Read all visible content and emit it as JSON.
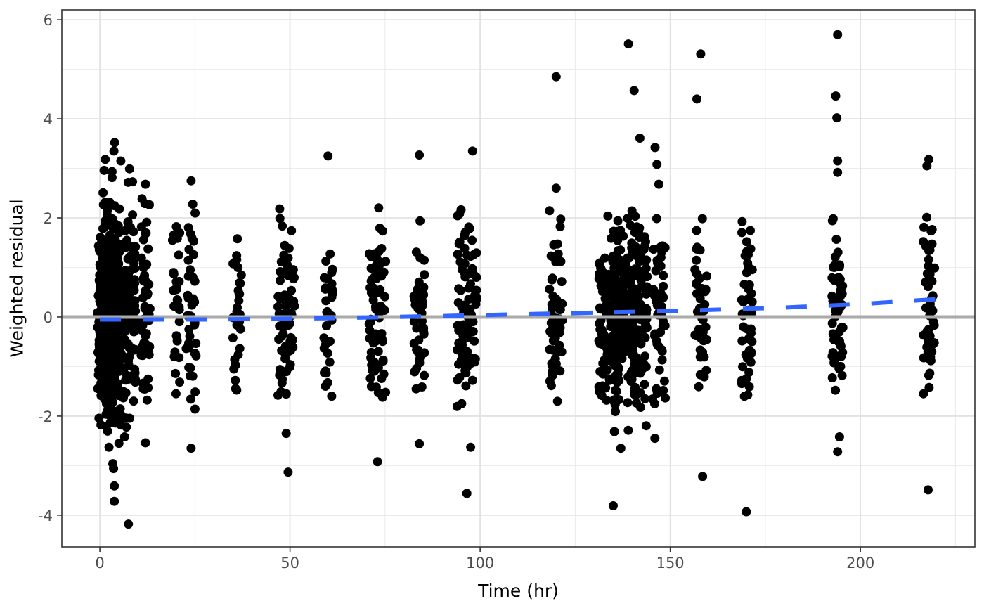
{
  "chart_data": {
    "type": "scatter",
    "title": "",
    "xlabel": "Time (hr)",
    "ylabel": "Weighted residual",
    "grid": true,
    "legend": false,
    "background": "#ffffff",
    "panel_border_color": "#333333",
    "grid_major_color": "#e2e2e2",
    "grid_minor_color": "#ececec",
    "tick_label_color": "#4d4d4d",
    "point_color": "#000000",
    "point_radius": 6.5,
    "x_axis": {
      "ticks": [
        0,
        50,
        100,
        150,
        200
      ],
      "minor_ticks": [
        25,
        75,
        125,
        175,
        225
      ],
      "range": [
        -10,
        230.1
      ],
      "label_format": [
        "0",
        "50",
        "100",
        "150",
        "200"
      ]
    },
    "y_axis": {
      "ticks": [
        -4,
        -2,
        0,
        2,
        4,
        6
      ],
      "minor_ticks": [
        -3,
        -1,
        1,
        3,
        5
      ],
      "range": [
        -4.64,
        6.2
      ],
      "label_format": [
        "-4",
        "-2",
        "0",
        "2",
        "4",
        "6"
      ]
    },
    "refline": {
      "y": 0,
      "color": "#aaaaaa",
      "width": 5
    },
    "trend": {
      "color": "#3366FF",
      "width": 6,
      "dash": [
        30,
        31
      ],
      "points": [
        [
          0,
          -0.05
        ],
        [
          30,
          -0.05
        ],
        [
          60,
          -0.025
        ],
        [
          90,
          0.02
        ],
        [
          120,
          0.07
        ],
        [
          150,
          0.12
        ],
        [
          180,
          0.19
        ],
        [
          200,
          0.26
        ],
        [
          220,
          0.36
        ]
      ]
    },
    "columns": [
      {
        "time": 0.5,
        "jitter": 1.2,
        "n": 95,
        "sd": 1.05,
        "min": -2.1,
        "max": 2.65
      },
      {
        "time": 1,
        "jitter": 1.2,
        "n": 95,
        "sd": 1.05,
        "min": -2.3,
        "max": 2.8
      },
      {
        "time": 2,
        "jitter": 1.3,
        "n": 90,
        "sd": 1.05,
        "min": -2.2,
        "max": 2.9
      },
      {
        "time": 3,
        "jitter": 1.3,
        "n": 85,
        "sd": 1.08,
        "min": -2.5,
        "max": 3.2
      },
      {
        "time": 4,
        "jitter": 1.3,
        "n": 85,
        "sd": 1.08,
        "min": -2.3,
        "max": 3.3
      },
      {
        "time": 6,
        "jitter": 1.5,
        "n": 80,
        "sd": 1.05,
        "min": -2.4,
        "max": 3.0
      },
      {
        "time": 8,
        "jitter": 1.5,
        "n": 75,
        "sd": 1.05,
        "min": -2.2,
        "max": 2.75
      },
      {
        "time": 12,
        "jitter": 1.2,
        "n": 55,
        "sd": 1.0,
        "min": -2.2,
        "max": 2.55
      },
      {
        "time": 20,
        "jitter": 1.0,
        "n": 28,
        "sd": 1.0,
        "min": -1.9,
        "max": 2.15
      },
      {
        "time": 24,
        "jitter": 1.4,
        "n": 38,
        "sd": 0.95,
        "min": -2.05,
        "max": 2.6
      },
      {
        "time": 36,
        "jitter": 1.2,
        "n": 32,
        "sd": 0.8,
        "min": -1.8,
        "max": 1.65
      },
      {
        "time": 48,
        "jitter": 1.2,
        "n": 40,
        "sd": 0.95,
        "min": -2.05,
        "max": 2.3
      },
      {
        "time": 50,
        "jitter": 1.2,
        "n": 36,
        "sd": 0.95,
        "min": -1.9,
        "max": 2.45
      },
      {
        "time": 60,
        "jitter": 1.2,
        "n": 34,
        "sd": 0.85,
        "min": -1.75,
        "max": 2.1
      },
      {
        "time": 73,
        "jitter": 2.2,
        "n": 70,
        "sd": 0.95,
        "min": -1.95,
        "max": 2.45
      },
      {
        "time": 84,
        "jitter": 1.4,
        "n": 48,
        "sd": 0.9,
        "min": -1.55,
        "max": 2.0
      },
      {
        "time": 96.5,
        "jitter": 2.6,
        "n": 95,
        "sd": 1.0,
        "min": -2.2,
        "max": 2.5
      },
      {
        "time": 120,
        "jitter": 1.8,
        "n": 60,
        "sd": 0.95,
        "min": -2.05,
        "max": 2.3
      },
      {
        "time": 134,
        "jitter": 2.8,
        "n": 135,
        "sd": 1.0,
        "min": -2.1,
        "max": 2.1
      },
      {
        "time": 138,
        "jitter": 2.8,
        "n": 135,
        "sd": 1.05,
        "min": -2.5,
        "max": 2.15
      },
      {
        "time": 142,
        "jitter": 2.2,
        "n": 95,
        "sd": 1.0,
        "min": -2.2,
        "max": 2.1
      },
      {
        "time": 147,
        "jitter": 1.8,
        "n": 50,
        "sd": 0.95,
        "min": -2.55,
        "max": 2.3
      },
      {
        "time": 158,
        "jitter": 1.6,
        "n": 48,
        "sd": 0.95,
        "min": -2.05,
        "max": 2.15
      },
      {
        "time": 170,
        "jitter": 1.6,
        "n": 46,
        "sd": 0.95,
        "min": -1.95,
        "max": 2.4
      },
      {
        "time": 194,
        "jitter": 1.5,
        "n": 55,
        "sd": 0.95,
        "min": -1.6,
        "max": 2.6
      },
      {
        "time": 218,
        "jitter": 1.6,
        "n": 50,
        "sd": 0.95,
        "min": -1.55,
        "max": 2.25
      }
    ],
    "outlier_points": [
      [
        3.9,
        3.52
      ],
      [
        3.7,
        3.35
      ],
      [
        5.5,
        3.15
      ],
      [
        1.4,
        3.18
      ],
      [
        1.1,
        2.96
      ],
      [
        7.8,
        2.99
      ],
      [
        8.6,
        2.73
      ],
      [
        2.4,
        -2.63
      ],
      [
        3.4,
        -2.96
      ],
      [
        3.6,
        -3.06
      ],
      [
        3.8,
        -3.41
      ],
      [
        3.8,
        -3.72
      ],
      [
        7.5,
        -4.18
      ],
      [
        5.0,
        -2.55
      ],
      [
        6.5,
        -2.42
      ],
      [
        12,
        2.68
      ],
      [
        12,
        -2.54
      ],
      [
        24,
        2.75
      ],
      [
        24,
        -2.65
      ],
      [
        49,
        -2.35
      ],
      [
        49.5,
        -3.13
      ],
      [
        60,
        3.25
      ],
      [
        73,
        -2.92
      ],
      [
        84,
        3.27
      ],
      [
        84,
        -2.56
      ],
      [
        98,
        3.35
      ],
      [
        96.5,
        -3.56
      ],
      [
        97.5,
        -2.63
      ],
      [
        120,
        4.85
      ],
      [
        120,
        2.6
      ],
      [
        139,
        5.51
      ],
      [
        140.5,
        4.57
      ],
      [
        142,
        3.61
      ],
      [
        135,
        -3.81
      ],
      [
        137,
        -2.65
      ],
      [
        146,
        3.42
      ],
      [
        146.5,
        3.08
      ],
      [
        147,
        2.68
      ],
      [
        158,
        5.31
      ],
      [
        157,
        4.4
      ],
      [
        158.5,
        -3.22
      ],
      [
        170,
        -3.93
      ],
      [
        194,
        5.7
      ],
      [
        193.5,
        4.46
      ],
      [
        193.8,
        4.02
      ],
      [
        194,
        3.15
      ],
      [
        194,
        2.92
      ],
      [
        194.5,
        -2.42
      ],
      [
        194,
        -2.72
      ],
      [
        218,
        3.18
      ],
      [
        217.5,
        3.05
      ],
      [
        217.8,
        -3.49
      ]
    ]
  }
}
